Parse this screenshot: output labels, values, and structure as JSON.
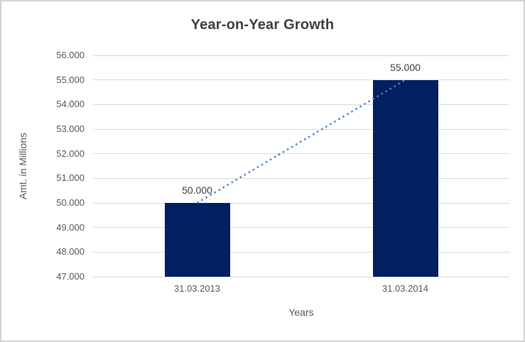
{
  "chart": {
    "title": "Year-on-Year Growth",
    "xlabel": "Years",
    "ylabel": "Amt. in Millions"
  },
  "chart_data": {
    "type": "bar",
    "title": "Year-on-Year Growth",
    "xlabel": "Years",
    "ylabel": "Amt. in Millions",
    "categories": [
      "31.03.2013",
      "31.03.2014"
    ],
    "values": [
      50000,
      55000
    ],
    "data_labels": [
      "50.000",
      "55.000"
    ],
    "ylim": [
      47000,
      56000
    ],
    "ytick_step": 1000,
    "ytick_labels": [
      "47.000",
      "48.000",
      "49.000",
      "50.000",
      "51.000",
      "52.000",
      "53.000",
      "54.000",
      "55.000",
      "56.000"
    ],
    "grid": true,
    "legend": "none",
    "trendline": {
      "style": "dotted",
      "from_value": 50000,
      "to_value": 55000,
      "color": "#4e81d2"
    },
    "colors": {
      "bar": "#002060",
      "gridline": "#d9d9d9",
      "title_text": "#404040",
      "axis_text": "#595959",
      "data_label_text": "#404040",
      "border": "#d3d3d3",
      "background": "#ffffff"
    }
  }
}
